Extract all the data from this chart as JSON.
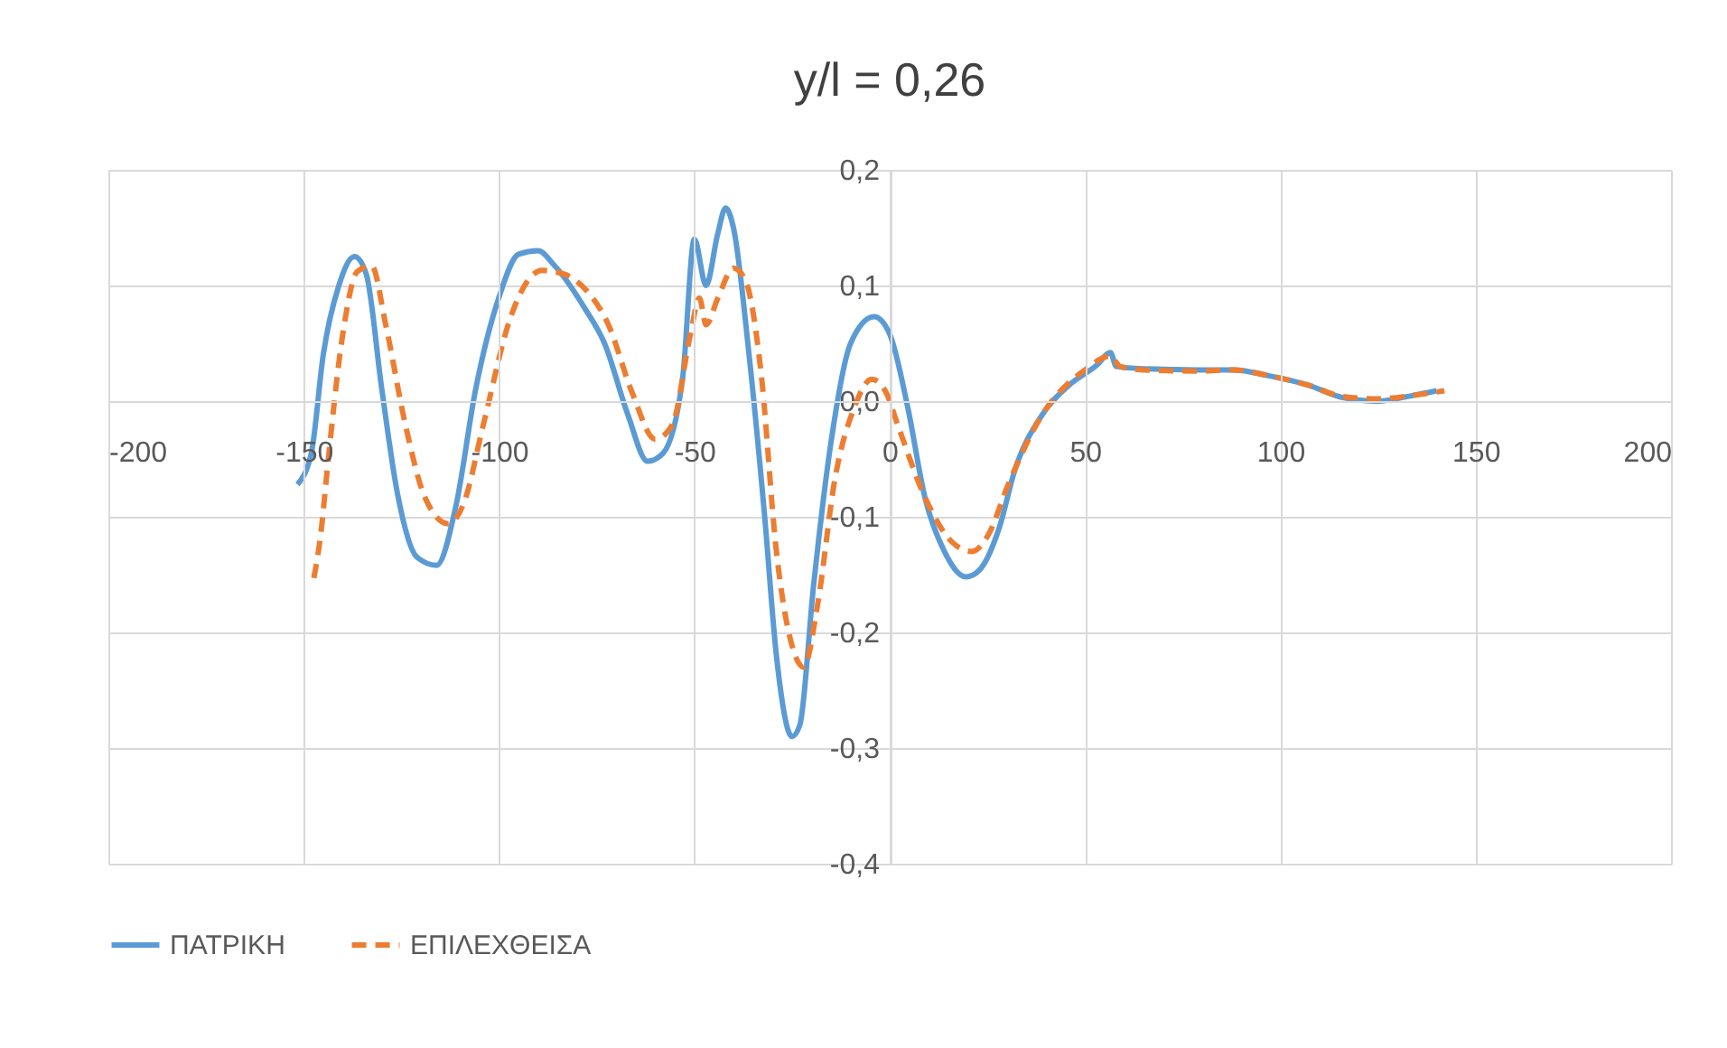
{
  "chart_data": {
    "type": "line",
    "title": "y/l = 0,26",
    "xlim": [
      -200,
      200
    ],
    "xticks": [
      -200,
      -150,
      -100,
      -50,
      0,
      50,
      100,
      150,
      200
    ],
    "ylim": [
      -0.4,
      0.2
    ],
    "yticks": [
      {
        "value": -0.4,
        "label": "-0,4"
      },
      {
        "value": -0.3,
        "label": "-0,3"
      },
      {
        "value": -0.2,
        "label": "-0,2"
      },
      {
        "value": -0.1,
        "label": "-0,1"
      },
      {
        "value": 0,
        "label": "0,0"
      },
      {
        "value": 0.1,
        "label": "0,1"
      },
      {
        "value": 0.2,
        "label": "0,2"
      }
    ],
    "grid": true,
    "legend": "bottom",
    "marker": "none",
    "series": [
      {
        "name": "ΠΑΤΡΙΚΗ",
        "color": "#5b9bd5",
        "line_style": "solid",
        "x": [
          -151.6,
          -148,
          -145,
          -141,
          -137,
          -134,
          -130,
          -126,
          -121,
          -116,
          -111,
          -106,
          -100,
          -95,
          -90,
          -86,
          -78,
          -73,
          -67,
          -62,
          -58,
          -53,
          -50,
          -47,
          -44,
          -42,
          -40,
          -36,
          -32,
          -29,
          -25,
          -23,
          -19.5,
          -15,
          -10,
          -4,
          0,
          4.6,
          9,
          14,
          19.5,
          23,
          28,
          32,
          39,
          46,
          53,
          56.5,
          58,
          65,
          79,
          88,
          97,
          107,
          116,
          125,
          134,
          140
        ],
        "values": [
          -0.072,
          -0.044,
          0.04,
          0.1,
          0.125,
          0.11,
          0.01,
          -0.08,
          -0.135,
          -0.142,
          -0.09,
          0.01,
          0.09,
          0.127,
          0.13,
          0.118,
          0.08,
          0.05,
          -0.012,
          -0.052,
          -0.045,
          0.02,
          0.14,
          0.1,
          0.145,
          0.167,
          0.15,
          0.04,
          -0.1,
          -0.22,
          -0.29,
          -0.28,
          -0.16,
          -0.035,
          0.05,
          0.073,
          0.058,
          -0.005,
          -0.083,
          -0.13,
          -0.152,
          -0.146,
          -0.11,
          -0.06,
          -0.012,
          0.014,
          0.031,
          0.042,
          0.03,
          0.028,
          0.027,
          0.027,
          0.022,
          0.014,
          0.003,
          0.0,
          0.005,
          0.009
        ]
      },
      {
        "name": "ΕΠΙΛΕΧΘΕΙΣΑ",
        "color": "#ed7d31",
        "line_style": "dashed",
        "x": [
          -147.4,
          -145.6,
          -144,
          -140,
          -136.3,
          -132.6,
          -129,
          -124,
          -119,
          -113,
          -109,
          -104,
          -97,
          -89,
          -83.5,
          -78,
          -72,
          -66,
          -60,
          -55.6,
          -51,
          -48.7,
          -47,
          -44,
          -40,
          -37,
          -33,
          -29,
          -24.6,
          -22,
          -18.5,
          -14,
          -9,
          -4.6,
          -1,
          2,
          9,
          16,
          21,
          25.5,
          30,
          39,
          50,
          56.5,
          59,
          65,
          79,
          88,
          97,
          107,
          116,
          125,
          134,
          142
        ],
        "values": [
          -0.153,
          -0.114,
          -0.06,
          0.058,
          0.112,
          0.117,
          0.066,
          -0.02,
          -0.083,
          -0.106,
          -0.088,
          -0.02,
          0.073,
          0.113,
          0.11,
          0.097,
          0.066,
          0.008,
          -0.033,
          -0.02,
          0.058,
          0.089,
          0.066,
          0.089,
          0.115,
          0.105,
          0.027,
          -0.13,
          -0.216,
          -0.23,
          -0.177,
          -0.067,
          -0.005,
          0.019,
          0.008,
          -0.02,
          -0.083,
          -0.122,
          -0.13,
          -0.114,
          -0.075,
          -0.012,
          0.027,
          0.039,
          0.03,
          0.027,
          0.026,
          0.027,
          0.022,
          0.014,
          0.004,
          0.002,
          0.005,
          0.009
        ]
      }
    ]
  }
}
